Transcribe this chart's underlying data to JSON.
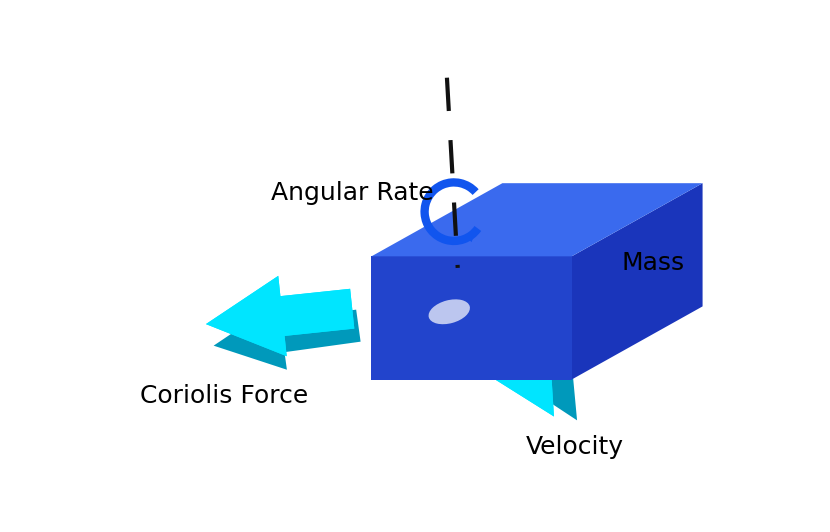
{
  "bg_color": "#ffffff",
  "fig_width": 8.3,
  "fig_height": 5.32,
  "dpi": 100,
  "label_angular_rate": "Angular Rate",
  "label_mass": "Mass",
  "label_coriolis": "Coriolis Force",
  "label_velocity": "Velocity",
  "label_fontsize": 16,
  "box_top_color": "#3a6aee",
  "box_front_color": "#2244cc",
  "box_right_color": "#1a35bb",
  "box_bottom_color": "#152fa0",
  "cyan_bright": "#00e5ff",
  "cyan_mid": "#00c8e8",
  "cyan_dark": "#0099bb",
  "rotation_color": "#1155ee",
  "axis_color": "#111111"
}
